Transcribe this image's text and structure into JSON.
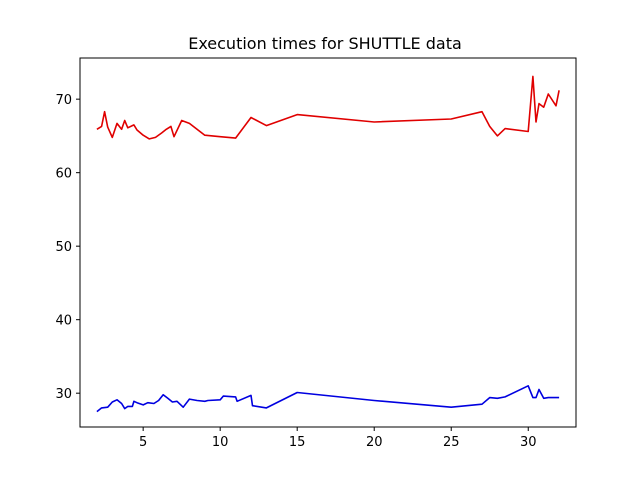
{
  "chart_data": {
    "type": "line",
    "title": "Execution times for SHUTTLE data",
    "xlabel": "",
    "ylabel": "",
    "xlim": [
      0.9,
      33.1
    ],
    "ylim": [
      25.4,
      75.6
    ],
    "xticks": [
      5,
      10,
      15,
      20,
      25,
      30
    ],
    "yticks": [
      30,
      40,
      50,
      60,
      70
    ],
    "grid": false,
    "series": [
      {
        "color": "#e00000",
        "x": [
          2,
          2.3,
          2.5,
          2.7,
          3.0,
          3.3,
          3.6,
          3.8,
          4.0,
          4.4,
          4.6,
          5.0,
          5.4,
          5.8,
          6.2,
          6.5,
          6.8,
          7.0,
          7.5,
          8.0,
          9.0,
          10.0,
          11.0,
          12.0,
          13.0,
          15.0,
          20.0,
          25.0,
          27.0,
          27.5,
          28.0,
          28.5,
          30.0,
          30.3,
          30.5,
          30.7,
          31.0,
          31.3,
          31.8,
          32.0
        ],
        "y": [
          65.9,
          66.3,
          68.3,
          66.2,
          64.8,
          66.7,
          65.9,
          67.1,
          66.1,
          66.5,
          65.8,
          65.1,
          64.6,
          64.8,
          65.4,
          65.9,
          66.3,
          64.9,
          67.1,
          66.7,
          65.1,
          64.9,
          64.7,
          67.5,
          66.4,
          67.9,
          66.9,
          67.3,
          68.3,
          66.3,
          65.0,
          66.0,
          65.6,
          73.1,
          66.9,
          69.4,
          68.9,
          70.7,
          69.1,
          71.2
        ]
      },
      {
        "color": "#0000e0",
        "x": [
          2,
          2.3,
          2.7,
          3.0,
          3.3,
          3.6,
          3.8,
          4.0,
          4.3,
          4.4,
          4.6,
          5.0,
          5.3,
          5.7,
          6.0,
          6.3,
          6.6,
          6.9,
          7.2,
          7.6,
          8.0,
          8.5,
          9.0,
          9.2,
          10.0,
          10.2,
          11.0,
          11.1,
          12.0,
          12.1,
          13.0,
          15.0,
          20.0,
          25.0,
          27.0,
          27.5,
          28.0,
          28.5,
          30.0,
          30.3,
          30.5,
          30.7,
          31.0,
          31.3,
          32.0
        ],
        "y": [
          27.5,
          28.0,
          28.1,
          28.8,
          29.1,
          28.6,
          27.9,
          28.2,
          28.2,
          28.9,
          28.7,
          28.4,
          28.7,
          28.6,
          29.0,
          29.8,
          29.3,
          28.8,
          28.9,
          28.1,
          29.2,
          29.0,
          28.9,
          29.0,
          29.1,
          29.6,
          29.5,
          28.9,
          29.7,
          28.3,
          28.0,
          30.1,
          29.0,
          28.1,
          28.5,
          29.4,
          29.3,
          29.5,
          31.0,
          29.4,
          29.4,
          30.5,
          29.3,
          29.4,
          29.4
        ]
      }
    ]
  }
}
